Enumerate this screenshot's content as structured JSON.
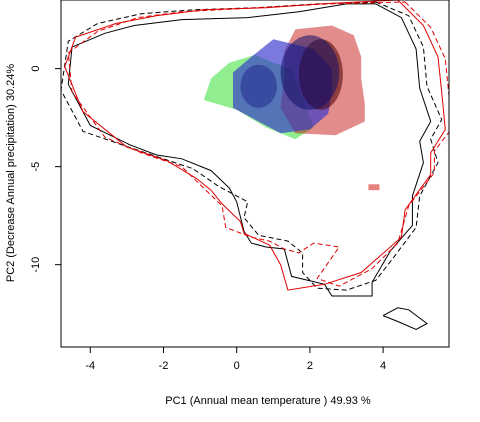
{
  "chart_data": {
    "type": "scatter",
    "title": "",
    "xlabel": "PC1 (Annual mean temperature ) 49.93 %",
    "ylabel": "PC2 (Decrease Annual precipitation) 30.24%",
    "xlim": [
      -4.8,
      5.8
    ],
    "ylim": [
      -14.2,
      3.5
    ],
    "x_ticks": [
      -4,
      -2,
      0,
      2,
      4
    ],
    "y_ticks": [
      0,
      -5,
      -10
    ],
    "x_tick_labels": [
      "-4",
      "-2",
      "0",
      "2",
      "4"
    ],
    "y_tick_labels": [
      "0",
      "-5",
      "-10"
    ],
    "grid": false,
    "legend": "none",
    "series": [
      {
        "style": "black-solid",
        "color": "#000000",
        "points": [
          [
            3.8,
            3.3
          ],
          [
            4.5,
            2.6
          ],
          [
            4.9,
            1.0
          ],
          [
            5.0,
            -1.0
          ],
          [
            5.3,
            -2.7
          ],
          [
            5.0,
            -3.7
          ],
          [
            5.1,
            -4.8
          ],
          [
            4.8,
            -6.5
          ],
          [
            4.8,
            -8.0
          ],
          [
            4.2,
            -9.3
          ],
          [
            3.7,
            -10.9
          ],
          [
            3.7,
            -11.6
          ],
          [
            2.6,
            -11.6
          ],
          [
            2.4,
            -11.0
          ],
          [
            1.5,
            -10.6
          ],
          [
            1.3,
            -9.2
          ],
          [
            0.8,
            -9.1
          ],
          [
            0.4,
            -8.9
          ],
          [
            0.2,
            -8.3
          ],
          [
            0.0,
            -6.8
          ],
          [
            -0.2,
            -6.1
          ],
          [
            -0.7,
            -5.2
          ],
          [
            -1.5,
            -4.6
          ],
          [
            -2.2,
            -4.4
          ],
          [
            -2.9,
            -3.9
          ],
          [
            -4.0,
            -2.9
          ],
          [
            -4.6,
            -0.8
          ],
          [
            -4.5,
            1.1
          ],
          [
            -3.6,
            1.8
          ],
          [
            -2.8,
            2.2
          ],
          [
            -1.5,
            2.5
          ],
          [
            0.3,
            2.6
          ],
          [
            1.7,
            2.9
          ],
          [
            3.0,
            3.3
          ],
          [
            3.8,
            3.3
          ]
        ]
      },
      {
        "style": "black-dashed",
        "color": "#000000",
        "points": [
          [
            3.8,
            3.4
          ],
          [
            4.7,
            2.7
          ],
          [
            5.1,
            1.1
          ],
          [
            5.2,
            -0.9
          ],
          [
            5.6,
            -2.6
          ],
          [
            5.3,
            -3.6
          ],
          [
            5.5,
            -4.8
          ],
          [
            5.0,
            -6.5
          ],
          [
            4.9,
            -8.1
          ],
          [
            4.3,
            -9.6
          ],
          [
            3.8,
            -10.8
          ],
          [
            3.0,
            -11.3
          ],
          [
            2.2,
            -11.2
          ],
          [
            1.8,
            -10.4
          ],
          [
            1.8,
            -9.4
          ],
          [
            1.4,
            -8.8
          ],
          [
            0.6,
            -8.5
          ],
          [
            0.2,
            -7.6
          ],
          [
            0.3,
            -6.8
          ],
          [
            -0.5,
            -6.0
          ],
          [
            -1.2,
            -5.1
          ],
          [
            -2.0,
            -4.6
          ],
          [
            -2.8,
            -4.1
          ],
          [
            -4.2,
            -3.2
          ],
          [
            -4.8,
            -1.1
          ],
          [
            -4.6,
            1.4
          ],
          [
            -3.8,
            2.3
          ],
          [
            -2.6,
            2.8
          ],
          [
            -1.2,
            3.0
          ],
          [
            0.5,
            3.1
          ],
          [
            2.2,
            3.3
          ],
          [
            3.8,
            3.4
          ]
        ]
      },
      {
        "style": "red-solid",
        "color": "#e00000",
        "points": [
          [
            4.4,
            3.5
          ],
          [
            5.1,
            2.2
          ],
          [
            5.5,
            0.6
          ],
          [
            5.6,
            -1.2
          ],
          [
            5.7,
            -3.1
          ],
          [
            5.3,
            -4.3
          ],
          [
            5.3,
            -5.4
          ],
          [
            4.6,
            -7.2
          ],
          [
            4.5,
            -8.6
          ],
          [
            3.4,
            -10.4
          ],
          [
            2.4,
            -11.0
          ],
          [
            1.4,
            -11.3
          ],
          [
            1.2,
            -10.0
          ],
          [
            0.9,
            -9.0
          ],
          [
            0.2,
            -8.4
          ],
          [
            0.1,
            -7.8
          ],
          [
            -0.4,
            -6.9
          ],
          [
            -0.7,
            -6.2
          ],
          [
            -1.1,
            -5.6
          ],
          [
            -1.9,
            -4.7
          ],
          [
            -3.0,
            -4.0
          ],
          [
            -4.2,
            -2.2
          ],
          [
            -4.7,
            0.1
          ],
          [
            -4.4,
            1.6
          ],
          [
            -3.3,
            2.3
          ],
          [
            -2.2,
            2.7
          ],
          [
            -0.9,
            3.0
          ],
          [
            0.8,
            3.1
          ],
          [
            2.3,
            3.3
          ],
          [
            4.4,
            3.5
          ]
        ]
      },
      {
        "style": "red-dashed",
        "color": "#e00000",
        "points": [
          [
            4.6,
            3.4
          ],
          [
            5.3,
            2.1
          ],
          [
            5.7,
            0.5
          ],
          [
            5.8,
            -1.4
          ],
          [
            5.9,
            -3.0
          ],
          [
            5.4,
            -4.2
          ],
          [
            5.4,
            -5.3
          ],
          [
            4.7,
            -7.0
          ],
          [
            4.4,
            -8.9
          ],
          [
            3.7,
            -10.2
          ],
          [
            2.8,
            -11.1
          ],
          [
            2.2,
            -10.7
          ],
          [
            2.5,
            -9.9
          ],
          [
            2.8,
            -9.1
          ],
          [
            2.1,
            -8.9
          ],
          [
            1.7,
            -9.4
          ],
          [
            1.3,
            -9.2
          ],
          [
            0.9,
            -8.8
          ],
          [
            0.4,
            -8.6
          ],
          [
            -0.3,
            -8.1
          ],
          [
            -0.4,
            -7.0
          ],
          [
            -0.9,
            -6.1
          ],
          [
            -1.5,
            -5.0
          ],
          [
            -2.6,
            -4.3
          ],
          [
            -3.6,
            -3.5
          ],
          [
            -4.5,
            -1.2
          ],
          [
            -4.6,
            0.8
          ],
          [
            -3.8,
            1.9
          ],
          [
            -2.7,
            2.6
          ],
          [
            -1.5,
            2.9
          ],
          [
            0.5,
            3.1
          ],
          [
            2.5,
            3.3
          ],
          [
            4.6,
            3.4
          ]
        ]
      },
      {
        "style": "black-solid",
        "color": "#000000",
        "points": [
          [
            4.0,
            -12.6
          ],
          [
            4.4,
            -12.2
          ],
          [
            4.7,
            -12.3
          ],
          [
            5.2,
            -13.0
          ],
          [
            4.9,
            -13.3
          ],
          [
            4.4,
            -12.9
          ],
          [
            4.0,
            -12.6
          ]
        ]
      }
    ],
    "density_patches": [
      {
        "name_key": "green",
        "color": "#90ee90",
        "alpha": 1.0,
        "points": [
          [
            0.5,
            0.7
          ],
          [
            1.0,
            0.3
          ],
          [
            1.5,
            0.0
          ],
          [
            1.8,
            -1.5
          ],
          [
            2.1,
            -3.0
          ],
          [
            1.6,
            -3.6
          ],
          [
            0.8,
            -3.0
          ],
          [
            0.0,
            -2.1
          ],
          [
            -0.9,
            -1.6
          ],
          [
            -0.7,
            -0.5
          ],
          [
            -0.2,
            0.3
          ],
          [
            0.5,
            0.7
          ]
        ]
      },
      {
        "name_key": "red",
        "color": "#c00000",
        "alpha": 0.45,
        "points": [
          [
            1.6,
            2.0
          ],
          [
            2.6,
            2.2
          ],
          [
            3.2,
            1.7
          ],
          [
            3.4,
            0.6
          ],
          [
            3.4,
            -0.5
          ],
          [
            3.5,
            -1.8
          ],
          [
            3.5,
            -2.7
          ],
          [
            2.7,
            -3.4
          ],
          [
            1.6,
            -3.3
          ],
          [
            1.2,
            -2.0
          ],
          [
            1.3,
            -0.5
          ],
          [
            1.3,
            0.9
          ],
          [
            1.6,
            2.0
          ]
        ]
      },
      {
        "name_key": "blue",
        "color": "#3333cc",
        "alpha": 0.65,
        "points": [
          [
            1.0,
            1.5
          ],
          [
            2.1,
            1.0
          ],
          [
            2.6,
            0.0
          ],
          [
            2.6,
            -1.2
          ],
          [
            2.5,
            -2.3
          ],
          [
            2.0,
            -3.1
          ],
          [
            1.2,
            -3.3
          ],
          [
            0.5,
            -2.6
          ],
          [
            -0.1,
            -2.0
          ],
          [
            -0.1,
            -0.2
          ],
          [
            0.4,
            0.6
          ],
          [
            1.0,
            1.5
          ]
        ]
      }
    ],
    "cores": [
      {
        "name_key": "red-core",
        "color": "#4a0000",
        "alpha": 0.55,
        "center": [
          2.3,
          -0.3
        ],
        "radius": [
          0.6,
          1.8
        ]
      },
      {
        "name_key": "blue-core",
        "color": "#111166",
        "alpha": 0.55,
        "center": [
          2.0,
          -0.2
        ],
        "radius": [
          0.8,
          1.9
        ]
      },
      {
        "name_key": "blue-left",
        "color": "#1a1a88",
        "alpha": 0.45,
        "center": [
          0.6,
          -0.9
        ],
        "radius": [
          0.5,
          1.1
        ]
      }
    ],
    "extra_marks": [
      {
        "name_key": "red-dot",
        "color": "#e88080",
        "rect": [
          3.6,
          -6.2,
          3.9,
          -5.9
        ]
      }
    ]
  }
}
